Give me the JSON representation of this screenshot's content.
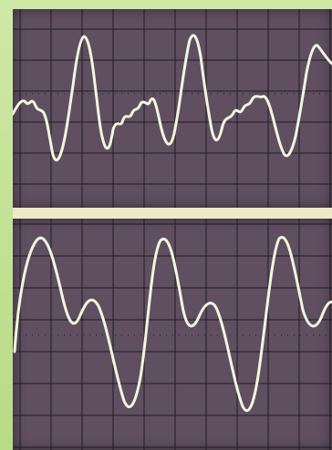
{
  "image": {
    "subject": "oscilloscope-traces",
    "panels": [
      {
        "name": "top-trace",
        "trace_color": "#f2f7dc",
        "screen_color": "#5f4f61",
        "grid_color": "#1f1a20"
      },
      {
        "name": "bottom-trace",
        "trace_color": "#f2f7dc",
        "screen_color": "#5f4f61",
        "grid_color": "#1f1a20"
      }
    ]
  }
}
